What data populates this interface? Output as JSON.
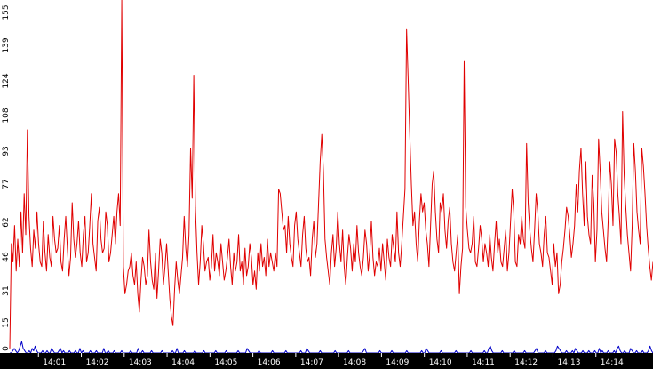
{
  "chart_data": {
    "type": "line",
    "title": "",
    "xlabel": "",
    "ylabel": "",
    "ylim": [
      0,
      155
    ],
    "grid": false,
    "yticks": [
      "0",
      "15",
      "31",
      "46",
      "62",
      "77",
      "93",
      "108",
      "124",
      "139",
      "155"
    ],
    "xticks": [
      "14:01",
      "14:02",
      "14:03",
      "14:04",
      "14:05",
      "14:06",
      "14:07",
      "14:08",
      "14:09",
      "14:10",
      "14:11",
      "14:12",
      "14:13",
      "14:14"
    ],
    "x_range_minutes": [
      0,
      15
    ],
    "colors": {
      "series_1": "#e00000",
      "series_2": "#0000c8",
      "axis_bar": "#000000"
    },
    "series": [
      {
        "values": [
          2,
          48,
          40,
          56,
          36,
          50,
          38,
          62,
          44,
          70,
          52,
          98,
          60,
          46,
          38,
          54,
          46,
          62,
          48,
          40,
          38,
          58,
          44,
          36,
          52,
          42,
          38,
          60,
          50,
          44,
          46,
          56,
          40,
          36,
          50,
          60,
          46,
          34,
          42,
          66,
          50,
          42,
          48,
          58,
          44,
          38,
          52,
          60,
          40,
          44,
          56,
          70,
          48,
          42,
          36,
          58,
          64,
          50,
          44,
          46,
          62,
          56,
          40,
          44,
          52,
          60,
          48,
          62,
          70,
          56,
          158,
          38,
          26,
          30,
          36,
          38,
          44,
          34,
          30,
          40,
          26,
          18,
          32,
          42,
          38,
          30,
          34,
          54,
          40,
          32,
          28,
          44,
          24,
          36,
          50,
          44,
          30,
          38,
          48,
          36,
          24,
          16,
          12,
          28,
          40,
          32,
          26,
          34,
          42,
          60,
          46,
          38,
          52,
          90,
          68,
          122,
          64,
          44,
          30,
          40,
          56,
          48,
          36,
          40,
          42,
          32,
          38,
          52,
          36,
          44,
          40,
          34,
          48,
          40,
          32,
          36,
          42,
          50,
          38,
          30,
          44,
          36,
          40,
          52,
          36,
          40,
          30,
          46,
          34,
          38,
          48,
          42,
          30,
          36,
          28,
          44,
          36,
          48,
          38,
          42,
          34,
          50,
          38,
          44,
          40,
          36,
          44,
          38,
          72,
          70,
          62,
          54,
          56,
          44,
          60,
          48,
          42,
          38,
          56,
          62,
          50,
          44,
          38,
          52,
          60,
          46,
          40,
          42,
          34,
          50,
          58,
          42,
          48,
          66,
          84,
          96,
          80,
          50,
          42,
          36,
          30,
          44,
          52,
          38,
          46,
          62,
          48,
          40,
          54,
          38,
          30,
          42,
          52,
          46,
          36,
          48,
          40,
          56,
          44,
          38,
          34,
          42,
          54,
          48,
          36,
          44,
          58,
          42,
          34,
          40,
          38,
          46,
          36,
          48,
          40,
          32,
          50,
          42,
          38,
          52,
          46,
          40,
          62,
          44,
          38,
          48,
          60,
          72,
          142,
          120,
          96,
          74,
          56,
          62,
          48,
          40,
          58,
          70,
          62,
          66,
          54,
          48,
          38,
          56,
          74,
          80,
          62,
          50,
          44,
          66,
          62,
          70,
          54,
          46,
          58,
          64,
          48,
          40,
          36,
          44,
          52,
          26,
          38,
          46,
          128,
          64,
          54,
          46,
          44,
          48,
          60,
          40,
          38,
          46,
          56,
          50,
          40,
          48,
          44,
          38,
          52,
          42,
          36,
          48,
          58,
          44,
          50,
          40,
          38,
          46,
          54,
          36,
          44,
          58,
          72,
          62,
          40,
          38,
          52,
          48,
          60,
          50,
          46,
          92,
          66,
          54,
          46,
          40,
          54,
          70,
          62,
          48,
          44,
          38,
          52,
          60,
          44,
          42,
          36,
          30,
          48,
          38,
          44,
          26,
          30,
          40,
          46,
          54,
          64,
          60,
          52,
          42,
          48,
          56,
          74,
          62,
          80,
          90,
          70,
          56,
          84,
          60,
          52,
          48,
          78,
          66,
          40,
          54,
          94,
          80,
          62,
          54,
          46,
          40,
          58,
          84,
          74,
          56,
          94,
          88,
          70,
          60,
          48,
          106,
          78,
          64,
          52,
          44,
          36,
          56,
          92,
          80,
          62,
          54,
          48,
          90,
          82,
          70,
          56,
          46,
          38,
          32,
          40
        ]
      },
      {
        "values": [
          0,
          0,
          1,
          2,
          1,
          0,
          1,
          3,
          5,
          2,
          1,
          0,
          0,
          1,
          0,
          2,
          1,
          3,
          1,
          0,
          0,
          0,
          1,
          0,
          0,
          1,
          0,
          0,
          2,
          1,
          0,
          0,
          0,
          1,
          2,
          0,
          1,
          0,
          0,
          0,
          1,
          0,
          0,
          0,
          1,
          0,
          0,
          2,
          0,
          1,
          0,
          0,
          0,
          0,
          1,
          0,
          0,
          0,
          1,
          0,
          0,
          0,
          0,
          2,
          0,
          0,
          1,
          0,
          0,
          0,
          1,
          0,
          0,
          0,
          0,
          1,
          0,
          0,
          0,
          0,
          0,
          1,
          0,
          0,
          0,
          0,
          2,
          0,
          0,
          1,
          0,
          0,
          0,
          0,
          0,
          1,
          0,
          0,
          0,
          0,
          0,
          0,
          1,
          0,
          0,
          0,
          0,
          0,
          0,
          1,
          0,
          0,
          2,
          0,
          0,
          0,
          0,
          1,
          0,
          0,
          0,
          0,
          0,
          0,
          1,
          0,
          0,
          0,
          0,
          0,
          1,
          0,
          0,
          0,
          0,
          0,
          0,
          0,
          1,
          0,
          0,
          0,
          0,
          0,
          0,
          1,
          0,
          0,
          0,
          0,
          0,
          0,
          0,
          1,
          0,
          0,
          0,
          0,
          0,
          2,
          1,
          0,
          0,
          0,
          0,
          0,
          0,
          1,
          0,
          0,
          0,
          0,
          0,
          0,
          0,
          0,
          1,
          0,
          0,
          0,
          0,
          0,
          0,
          0,
          0,
          1,
          0,
          0,
          0,
          0,
          0,
          0,
          0,
          0,
          0,
          1,
          0,
          0,
          0,
          2,
          1,
          0,
          0,
          0,
          0,
          0,
          0,
          0,
          1,
          0,
          0,
          0,
          0,
          0,
          0,
          0,
          0,
          0,
          1,
          0,
          0,
          0,
          0,
          0,
          0,
          0,
          0,
          1,
          0,
          0,
          0,
          0,
          0,
          0,
          0,
          0,
          0,
          1,
          2,
          0,
          0,
          0,
          0,
          0,
          0,
          0,
          0,
          0,
          1,
          0,
          0,
          0,
          0,
          0,
          0,
          0,
          1,
          0,
          0,
          0,
          0,
          0,
          0,
          0,
          0,
          0,
          1,
          0,
          0,
          0,
          0,
          0,
          0,
          0,
          0,
          0,
          1,
          0,
          0,
          2,
          1,
          0,
          0,
          0,
          0,
          0,
          0,
          0,
          0,
          1,
          0,
          0,
          0,
          0,
          0,
          0,
          0,
          0,
          0,
          1,
          0,
          0,
          0,
          0,
          0,
          0,
          0,
          0,
          0,
          1,
          0,
          0,
          0,
          0,
          0,
          0,
          0,
          0,
          1,
          0,
          0,
          2,
          3,
          1,
          0,
          0,
          0,
          0,
          0,
          0,
          1,
          0,
          0,
          0,
          0,
          0,
          0,
          0,
          1,
          0,
          0,
          0,
          0,
          0,
          0,
          1,
          0,
          0,
          0,
          0,
          0,
          0,
          1,
          2,
          0,
          0,
          0,
          0,
          0,
          1,
          0,
          0,
          0,
          0,
          0,
          0,
          1,
          3,
          2,
          1,
          0,
          0,
          0,
          1,
          0,
          0,
          0,
          1,
          0,
          2,
          1,
          0,
          0,
          0,
          1,
          0,
          0,
          0,
          1,
          0,
          0,
          0,
          1,
          0,
          0,
          2,
          0,
          1,
          0,
          0,
          0,
          1,
          0,
          0,
          0,
          1,
          0,
          2,
          3,
          1,
          0,
          0,
          1,
          0,
          0,
          0,
          2,
          1,
          0,
          0,
          1,
          0,
          0,
          0,
          1,
          0,
          0,
          0,
          1,
          3,
          1,
          0
        ]
      }
    ]
  }
}
